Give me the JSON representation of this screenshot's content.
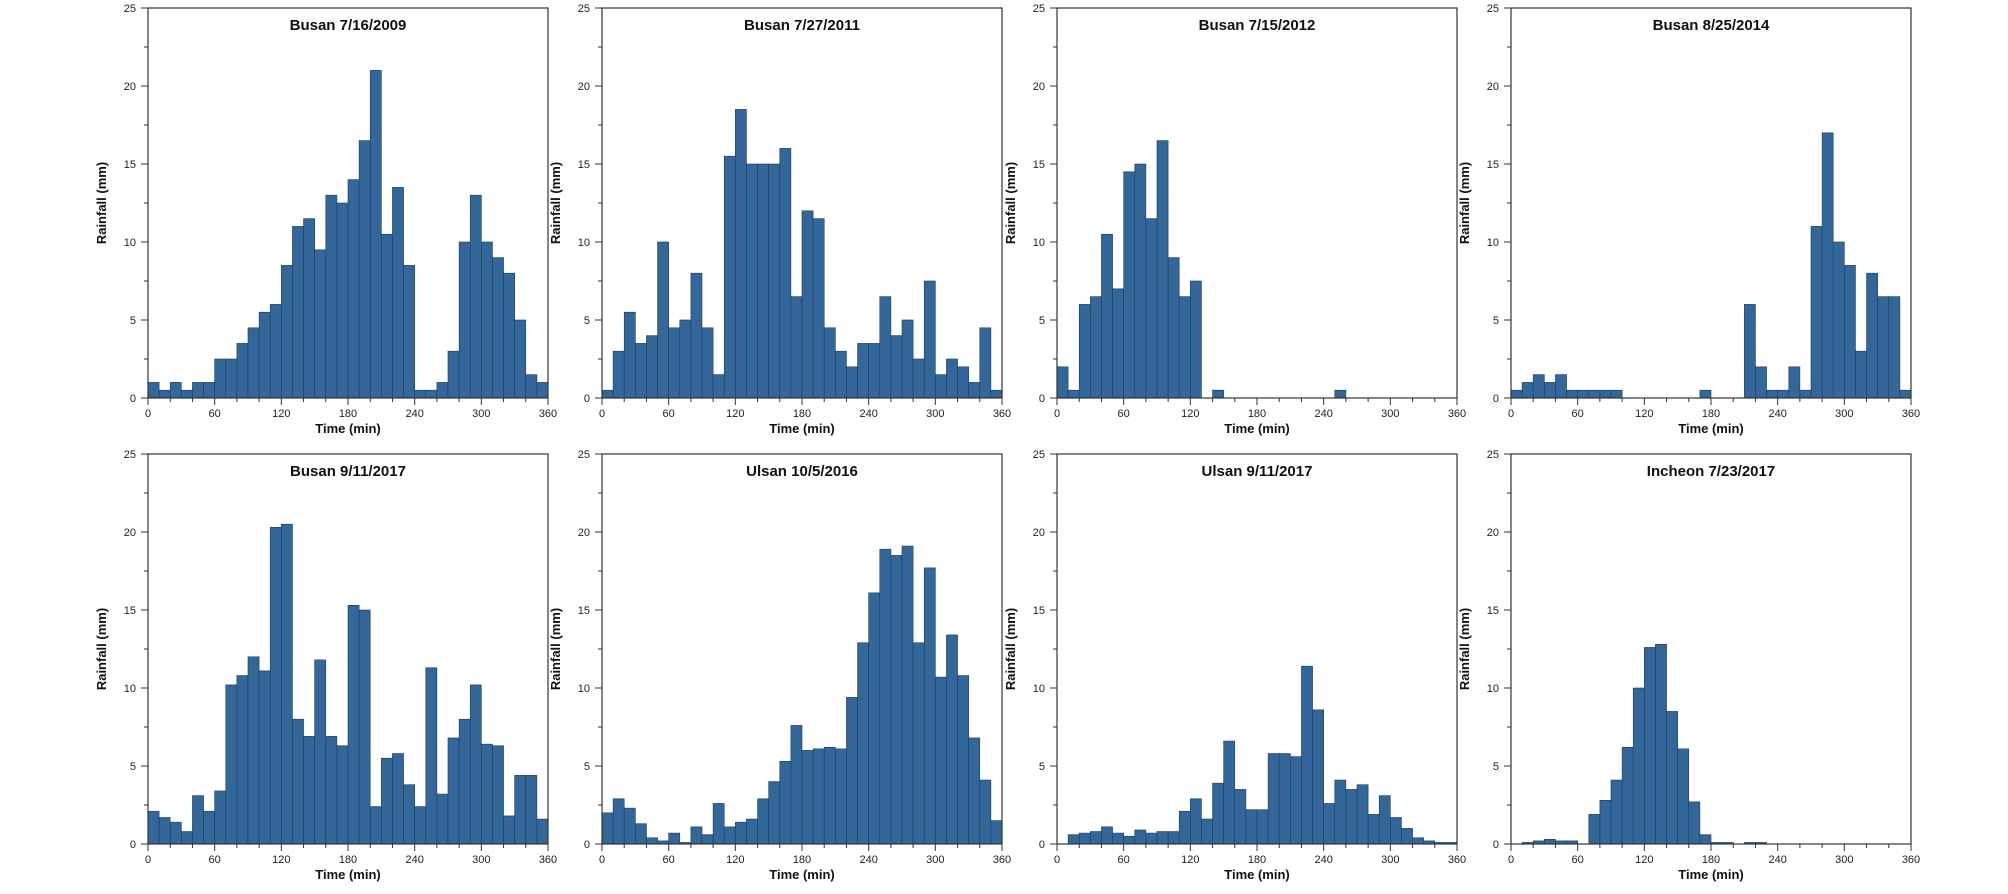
{
  "chart_data": [
    {
      "type": "bar",
      "title": "Busan 7/16/2009",
      "xlabel": "Time (min)",
      "ylabel": "Rainfall (mm)",
      "xlim": [
        0,
        360
      ],
      "ylim": [
        0,
        25
      ],
      "xticks": [
        0,
        60,
        120,
        180,
        240,
        300,
        360
      ],
      "yticks": [
        0,
        5,
        10,
        15,
        20,
        25
      ],
      "bin_minutes": 10,
      "color": "#336699",
      "grid": false,
      "values": [
        1,
        0.5,
        1,
        0.5,
        1,
        1,
        2.5,
        2.5,
        3.5,
        4.5,
        5.5,
        6,
        8.5,
        11,
        11.5,
        9.5,
        13,
        12.5,
        14,
        16.5,
        21,
        10.5,
        13.5,
        8.5,
        0.5,
        0.5,
        1,
        3,
        10,
        13,
        10,
        9,
        8,
        5,
        1.5,
        1
      ]
    },
    {
      "type": "bar",
      "title": "Busan 7/27/2011",
      "xlabel": "Time (min)",
      "ylabel": "Rainfall (mm)",
      "xlim": [
        0,
        360
      ],
      "ylim": [
        0,
        25
      ],
      "xticks": [
        0,
        60,
        120,
        180,
        240,
        300,
        360
      ],
      "yticks": [
        0,
        5,
        10,
        15,
        20,
        25
      ],
      "bin_minutes": 10,
      "color": "#336699",
      "grid": false,
      "values": [
        0.5,
        3,
        5.5,
        3.5,
        4,
        10,
        4.5,
        5,
        8,
        4.5,
        1.5,
        15.5,
        18.5,
        15,
        15,
        15,
        16,
        6.5,
        12,
        11.5,
        4.5,
        3,
        2,
        3.5,
        3.5,
        6.5,
        4,
        5,
        2.5,
        7.5,
        1.5,
        2.5,
        2,
        1,
        4.5,
        0.5
      ]
    },
    {
      "type": "bar",
      "title": "Busan 7/15/2012",
      "xlabel": "Time (min)",
      "ylabel": "Rainfall (mm)",
      "xlim": [
        0,
        360
      ],
      "ylim": [
        0,
        25
      ],
      "xticks": [
        0,
        60,
        120,
        180,
        240,
        300,
        360
      ],
      "yticks": [
        0,
        5,
        10,
        15,
        20,
        25
      ],
      "bin_minutes": 10,
      "color": "#336699",
      "grid": false,
      "values": [
        2,
        0.5,
        6,
        6.5,
        10.5,
        7,
        14.5,
        15,
        11.5,
        16.5,
        9,
        6.5,
        7.5,
        0,
        0.5,
        0,
        0,
        0,
        0,
        0,
        0,
        0,
        0,
        0,
        0,
        0.5,
        0,
        0,
        0,
        0,
        0,
        0,
        0,
        0,
        0,
        0
      ]
    },
    {
      "type": "bar",
      "title": "Busan 8/25/2014",
      "xlabel": "Time (min)",
      "ylabel": "Rainfall (mm)",
      "xlim": [
        0,
        360
      ],
      "ylim": [
        0,
        25
      ],
      "xticks": [
        0,
        60,
        120,
        180,
        240,
        300,
        360
      ],
      "yticks": [
        0,
        5,
        10,
        15,
        20,
        25
      ],
      "bin_minutes": 10,
      "color": "#336699",
      "grid": false,
      "values": [
        0.5,
        1,
        1.5,
        1,
        1.5,
        0.5,
        0.5,
        0.5,
        0.5,
        0.5,
        0,
        0,
        0,
        0,
        0,
        0,
        0,
        0.5,
        0,
        0,
        0,
        6,
        2,
        0.5,
        0.5,
        2,
        0.5,
        11,
        17,
        10,
        8.5,
        3,
        8,
        6.5,
        6.5,
        0.5
      ]
    },
    {
      "type": "bar",
      "title": "Busan 9/11/2017",
      "xlabel": "Time (min)",
      "ylabel": "Rainfall (mm)",
      "xlim": [
        0,
        360
      ],
      "ylim": [
        0,
        25
      ],
      "xticks": [
        0,
        60,
        120,
        180,
        240,
        300,
        360
      ],
      "yticks": [
        0,
        5,
        10,
        15,
        20,
        25
      ],
      "bin_minutes": 10,
      "color": "#336699",
      "grid": false,
      "values": [
        2.1,
        1.7,
        1.4,
        0.8,
        3.1,
        2.1,
        3.4,
        10.2,
        10.8,
        12,
        11.1,
        20.3,
        20.5,
        8,
        6.9,
        11.8,
        6.9,
        6.3,
        15.3,
        15,
        2.4,
        5.5,
        5.8,
        3.8,
        2.4,
        11.3,
        3.2,
        6.8,
        8,
        10.2,
        6.4,
        6.3,
        1.8,
        4.4,
        4.4,
        1.6
      ]
    },
    {
      "type": "bar",
      "title": "Ulsan 10/5/2016",
      "xlabel": "Time (min)",
      "ylabel": "Rainfall (mm)",
      "xlim": [
        0,
        360
      ],
      "ylim": [
        0,
        25
      ],
      "xticks": [
        0,
        60,
        120,
        180,
        240,
        300,
        360
      ],
      "yticks": [
        0,
        5,
        10,
        15,
        20,
        25
      ],
      "bin_minutes": 10,
      "color": "#336699",
      "grid": false,
      "values": [
        2,
        2.9,
        2.3,
        1.3,
        0.4,
        0.2,
        0.7,
        0.1,
        1.1,
        0.6,
        2.6,
        1.1,
        1.4,
        1.6,
        2.9,
        4,
        5.3,
        7.6,
        6,
        6.1,
        6.2,
        6.1,
        9.4,
        12.9,
        16.1,
        18.9,
        18.5,
        19.1,
        12.9,
        17.7,
        10.7,
        13.4,
        10.8,
        6.8,
        4.1,
        1.5
      ]
    },
    {
      "type": "bar",
      "title": "Ulsan 9/11/2017",
      "xlabel": "Time (min)",
      "ylabel": "Rainfall (mm)",
      "xlim": [
        0,
        360
      ],
      "ylim": [
        0,
        25
      ],
      "xticks": [
        0,
        60,
        120,
        180,
        240,
        300,
        360
      ],
      "yticks": [
        0,
        5,
        10,
        15,
        20,
        25
      ],
      "bin_minutes": 10,
      "color": "#336699",
      "grid": false,
      "values": [
        0,
        0.6,
        0.7,
        0.8,
        1.1,
        0.7,
        0.5,
        0.9,
        0.7,
        0.8,
        0.8,
        2.1,
        2.9,
        1.6,
        3.9,
        6.6,
        3.5,
        2.2,
        2.2,
        5.8,
        5.8,
        5.6,
        11.4,
        8.6,
        2.6,
        4.1,
        3.5,
        3.8,
        1.9,
        3.1,
        1.7,
        1,
        0.4,
        0.2,
        0.1,
        0.1
      ]
    },
    {
      "type": "bar",
      "title": "Incheon 7/23/2017",
      "xlabel": "Time (min)",
      "ylabel": "Rainfall (mm)",
      "xlim": [
        0,
        360
      ],
      "ylim": [
        0,
        25
      ],
      "xticks": [
        0,
        60,
        120,
        180,
        240,
        300,
        360
      ],
      "yticks": [
        0,
        5,
        10,
        15,
        20,
        25
      ],
      "bin_minutes": 10,
      "color": "#336699",
      "grid": false,
      "values": [
        0,
        0.1,
        0.2,
        0.3,
        0.2,
        0.2,
        0,
        1.9,
        2.8,
        4.1,
        6.2,
        10,
        12.6,
        12.8,
        8.5,
        6.1,
        2.7,
        0.6,
        0.1,
        0.1,
        0,
        0.1,
        0.1,
        0,
        0,
        0,
        0,
        0,
        0,
        0,
        0,
        0,
        0,
        0,
        0,
        0
      ]
    }
  ]
}
